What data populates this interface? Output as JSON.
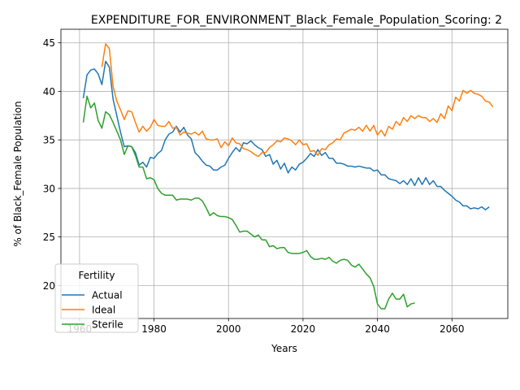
{
  "chart_data": {
    "type": "line",
    "title": "EXPENDITURE_FOR_ENVIRONMENT_Black_Female_Population_Scoring: 2",
    "xlabel": "Years",
    "ylabel": "% of Black_Female Population",
    "xlim": [
      1955,
      2075
    ],
    "ylim": [
      16.6,
      46.4
    ],
    "xticks": [
      1960,
      1980,
      2000,
      2020,
      2040,
      2060
    ],
    "yticks": [
      20,
      25,
      30,
      35,
      40,
      45
    ],
    "grid": true,
    "legend": {
      "title": "Fertility",
      "placement": "lower-left"
    },
    "series": [
      {
        "name": "Actual",
        "color": "#1f77b4",
        "points": [
          [
            1961,
            39.3
          ],
          [
            1962,
            41.7
          ],
          [
            1963,
            42.2
          ],
          [
            1964,
            42.3
          ],
          [
            1965,
            41.8
          ],
          [
            1966,
            40.7
          ],
          [
            1967,
            43.1
          ],
          [
            1968,
            42.5
          ],
          [
            1969,
            39.2
          ],
          [
            1970,
            37.5
          ],
          [
            1971,
            35.8
          ],
          [
            1972,
            34.3
          ],
          [
            1973,
            34.4
          ],
          [
            1974,
            34.3
          ],
          [
            1975,
            33.7
          ],
          [
            1976,
            32.4
          ],
          [
            1977,
            32.7
          ],
          [
            1978,
            32.2
          ],
          [
            1979,
            33.2
          ],
          [
            1980,
            33.1
          ],
          [
            1981,
            33.6
          ],
          [
            1982,
            33.9
          ],
          [
            1983,
            35.0
          ],
          [
            1984,
            35.6
          ],
          [
            1985,
            35.8
          ],
          [
            1986,
            36.4
          ],
          [
            1987,
            35.8
          ],
          [
            1988,
            36.3
          ],
          [
            1989,
            35.5
          ],
          [
            1990,
            35.1
          ],
          [
            1991,
            33.7
          ],
          [
            1992,
            33.3
          ],
          [
            1993,
            32.8
          ],
          [
            1994,
            32.4
          ],
          [
            1995,
            32.3
          ],
          [
            1996,
            31.9
          ],
          [
            1997,
            31.9
          ],
          [
            1998,
            32.2
          ],
          [
            1999,
            32.4
          ],
          [
            2000,
            33.1
          ],
          [
            2001,
            33.7
          ],
          [
            2002,
            34.2
          ],
          [
            2003,
            33.8
          ],
          [
            2004,
            34.7
          ],
          [
            2005,
            34.6
          ],
          [
            2006,
            34.9
          ],
          [
            2007,
            34.5
          ],
          [
            2008,
            34.2
          ],
          [
            2009,
            34.0
          ],
          [
            2010,
            33.3
          ],
          [
            2011,
            33.5
          ],
          [
            2012,
            32.5
          ],
          [
            2013,
            32.9
          ],
          [
            2014,
            32.0
          ],
          [
            2015,
            32.6
          ],
          [
            2016,
            31.6
          ],
          [
            2017,
            32.2
          ],
          [
            2018,
            31.9
          ],
          [
            2019,
            32.5
          ],
          [
            2020,
            32.7
          ],
          [
            2021,
            33.1
          ],
          [
            2022,
            33.6
          ],
          [
            2023,
            33.3
          ],
          [
            2024,
            34.0
          ],
          [
            2025,
            33.4
          ],
          [
            2026,
            33.7
          ],
          [
            2027,
            33.1
          ],
          [
            2028,
            33.1
          ],
          [
            2029,
            32.6
          ],
          [
            2030,
            32.6
          ],
          [
            2031,
            32.5
          ],
          [
            2032,
            32.3
          ],
          [
            2033,
            32.3
          ],
          [
            2034,
            32.2
          ],
          [
            2035,
            32.3
          ],
          [
            2036,
            32.2
          ],
          [
            2037,
            32.1
          ],
          [
            2038,
            32.1
          ],
          [
            2039,
            31.8
          ],
          [
            2040,
            31.9
          ],
          [
            2041,
            31.4
          ],
          [
            2042,
            31.4
          ],
          [
            2043,
            31.0
          ],
          [
            2044,
            30.9
          ],
          [
            2045,
            30.8
          ],
          [
            2046,
            30.5
          ],
          [
            2047,
            30.8
          ],
          [
            2048,
            30.4
          ],
          [
            2049,
            31.0
          ],
          [
            2050,
            30.3
          ],
          [
            2051,
            31.1
          ],
          [
            2052,
            30.4
          ],
          [
            2053,
            31.1
          ],
          [
            2054,
            30.4
          ],
          [
            2055,
            30.8
          ],
          [
            2056,
            30.2
          ],
          [
            2057,
            30.2
          ],
          [
            2058,
            29.8
          ],
          [
            2059,
            29.5
          ],
          [
            2060,
            29.2
          ],
          [
            2061,
            28.8
          ],
          [
            2062,
            28.6
          ],
          [
            2063,
            28.2
          ],
          [
            2064,
            28.2
          ],
          [
            2065,
            27.9
          ],
          [
            2066,
            28.0
          ],
          [
            2067,
            27.9
          ],
          [
            2068,
            28.1
          ],
          [
            2069,
            27.8
          ],
          [
            2070,
            28.1
          ]
        ]
      },
      {
        "name": "Ideal",
        "color": "#ff7f0e",
        "points": [
          [
            1966,
            42.5
          ],
          [
            1967,
            44.9
          ],
          [
            1968,
            44.4
          ],
          [
            1969,
            40.5
          ],
          [
            1970,
            39.0
          ],
          [
            1971,
            38.1
          ],
          [
            1972,
            37.1
          ],
          [
            1973,
            38.0
          ],
          [
            1974,
            37.9
          ],
          [
            1975,
            36.8
          ],
          [
            1976,
            35.8
          ],
          [
            1977,
            36.4
          ],
          [
            1978,
            35.9
          ],
          [
            1979,
            36.3
          ],
          [
            1980,
            37.1
          ],
          [
            1981,
            36.5
          ],
          [
            1982,
            36.4
          ],
          [
            1983,
            36.4
          ],
          [
            1984,
            36.9
          ],
          [
            1985,
            36.2
          ],
          [
            1986,
            36.3
          ],
          [
            1987,
            35.5
          ],
          [
            1988,
            35.8
          ],
          [
            1989,
            35.7
          ],
          [
            1990,
            35.6
          ],
          [
            1991,
            35.8
          ],
          [
            1992,
            35.5
          ],
          [
            1993,
            35.9
          ],
          [
            1994,
            35.1
          ],
          [
            1995,
            35.0
          ],
          [
            1996,
            35.0
          ],
          [
            1997,
            35.1
          ],
          [
            1998,
            34.2
          ],
          [
            1999,
            34.8
          ],
          [
            2000,
            34.4
          ],
          [
            2001,
            35.2
          ],
          [
            2002,
            34.7
          ],
          [
            2003,
            34.6
          ],
          [
            2004,
            34.1
          ],
          [
            2005,
            34.0
          ],
          [
            2006,
            33.8
          ],
          [
            2007,
            33.5
          ],
          [
            2008,
            33.3
          ],
          [
            2009,
            33.7
          ],
          [
            2010,
            33.7
          ],
          [
            2011,
            34.2
          ],
          [
            2012,
            34.5
          ],
          [
            2013,
            34.9
          ],
          [
            2014,
            34.8
          ],
          [
            2015,
            35.2
          ],
          [
            2016,
            35.1
          ],
          [
            2017,
            34.9
          ],
          [
            2018,
            34.5
          ],
          [
            2019,
            35.0
          ],
          [
            2020,
            34.5
          ],
          [
            2021,
            34.6
          ],
          [
            2022,
            33.8
          ],
          [
            2023,
            33.9
          ],
          [
            2024,
            33.4
          ],
          [
            2025,
            34.1
          ],
          [
            2026,
            34.0
          ],
          [
            2027,
            34.5
          ],
          [
            2028,
            34.7
          ],
          [
            2029,
            35.1
          ],
          [
            2030,
            35.0
          ],
          [
            2031,
            35.7
          ],
          [
            2032,
            35.9
          ],
          [
            2033,
            36.1
          ],
          [
            2034,
            36.0
          ],
          [
            2035,
            36.3
          ],
          [
            2036,
            35.9
          ],
          [
            2037,
            36.5
          ],
          [
            2038,
            35.9
          ],
          [
            2039,
            36.5
          ],
          [
            2040,
            35.5
          ],
          [
            2041,
            36.0
          ],
          [
            2042,
            35.4
          ],
          [
            2043,
            36.4
          ],
          [
            2044,
            36.1
          ],
          [
            2045,
            36.9
          ],
          [
            2046,
            36.5
          ],
          [
            2047,
            37.3
          ],
          [
            2048,
            36.9
          ],
          [
            2049,
            37.5
          ],
          [
            2050,
            37.2
          ],
          [
            2051,
            37.5
          ],
          [
            2052,
            37.3
          ],
          [
            2053,
            37.3
          ],
          [
            2054,
            36.9
          ],
          [
            2055,
            37.2
          ],
          [
            2056,
            36.8
          ],
          [
            2057,
            37.7
          ],
          [
            2058,
            37.2
          ],
          [
            2059,
            38.5
          ],
          [
            2060,
            38.0
          ],
          [
            2061,
            39.4
          ],
          [
            2062,
            39.0
          ],
          [
            2063,
            40.1
          ],
          [
            2064,
            39.8
          ],
          [
            2065,
            40.1
          ],
          [
            2066,
            39.8
          ],
          [
            2067,
            39.7
          ],
          [
            2068,
            39.5
          ],
          [
            2069,
            39.0
          ],
          [
            2070,
            38.9
          ],
          [
            2071,
            38.4
          ]
        ]
      },
      {
        "name": "Sterile",
        "color": "#2ca02c",
        "points": [
          [
            1961,
            36.8
          ],
          [
            1962,
            39.5
          ],
          [
            1963,
            38.3
          ],
          [
            1964,
            38.8
          ],
          [
            1965,
            37.0
          ],
          [
            1966,
            36.2
          ],
          [
            1967,
            37.9
          ],
          [
            1968,
            37.6
          ],
          [
            1969,
            36.8
          ],
          [
            1970,
            35.9
          ],
          [
            1971,
            35.0
          ],
          [
            1972,
            33.5
          ],
          [
            1973,
            34.4
          ],
          [
            1974,
            34.3
          ],
          [
            1975,
            33.4
          ],
          [
            1976,
            32.2
          ],
          [
            1977,
            32.2
          ],
          [
            1978,
            31.0
          ],
          [
            1979,
            31.1
          ],
          [
            1980,
            30.9
          ],
          [
            1981,
            30.0
          ],
          [
            1982,
            29.5
          ],
          [
            1983,
            29.3
          ],
          [
            1984,
            29.3
          ],
          [
            1985,
            29.3
          ],
          [
            1986,
            28.8
          ],
          [
            1987,
            28.9
          ],
          [
            1988,
            28.9
          ],
          [
            1989,
            28.9
          ],
          [
            1990,
            28.8
          ],
          [
            1991,
            29.0
          ],
          [
            1992,
            29.0
          ],
          [
            1993,
            28.7
          ],
          [
            1994,
            28.0
          ],
          [
            1995,
            27.2
          ],
          [
            1996,
            27.5
          ],
          [
            1997,
            27.2
          ],
          [
            1998,
            27.1
          ],
          [
            1999,
            27.1
          ],
          [
            2000,
            27.0
          ],
          [
            2001,
            26.8
          ],
          [
            2002,
            26.2
          ],
          [
            2003,
            25.5
          ],
          [
            2004,
            25.6
          ],
          [
            2005,
            25.6
          ],
          [
            2006,
            25.3
          ],
          [
            2007,
            25.0
          ],
          [
            2008,
            25.2
          ],
          [
            2009,
            24.7
          ],
          [
            2010,
            24.7
          ],
          [
            2011,
            24.0
          ],
          [
            2012,
            24.1
          ],
          [
            2013,
            23.8
          ],
          [
            2014,
            23.9
          ],
          [
            2015,
            23.9
          ],
          [
            2016,
            23.4
          ],
          [
            2017,
            23.3
          ],
          [
            2018,
            23.3
          ],
          [
            2019,
            23.3
          ],
          [
            2020,
            23.4
          ],
          [
            2021,
            23.6
          ],
          [
            2022,
            23.0
          ],
          [
            2023,
            22.7
          ],
          [
            2024,
            22.7
          ],
          [
            2025,
            22.8
          ],
          [
            2026,
            22.7
          ],
          [
            2027,
            22.9
          ],
          [
            2028,
            22.5
          ],
          [
            2029,
            22.3
          ],
          [
            2030,
            22.6
          ],
          [
            2031,
            22.7
          ],
          [
            2032,
            22.6
          ],
          [
            2033,
            22.1
          ],
          [
            2034,
            21.9
          ],
          [
            2035,
            22.2
          ],
          [
            2036,
            21.7
          ],
          [
            2037,
            21.2
          ],
          [
            2038,
            20.8
          ],
          [
            2039,
            19.9
          ],
          [
            2040,
            18.1
          ],
          [
            2041,
            17.6
          ],
          [
            2042,
            17.6
          ],
          [
            2043,
            18.6
          ],
          [
            2044,
            19.2
          ],
          [
            2045,
            18.6
          ],
          [
            2046,
            18.6
          ],
          [
            2047,
            19.1
          ],
          [
            2048,
            17.8
          ],
          [
            2049,
            18.1
          ],
          [
            2050,
            18.2
          ]
        ]
      }
    ]
  }
}
